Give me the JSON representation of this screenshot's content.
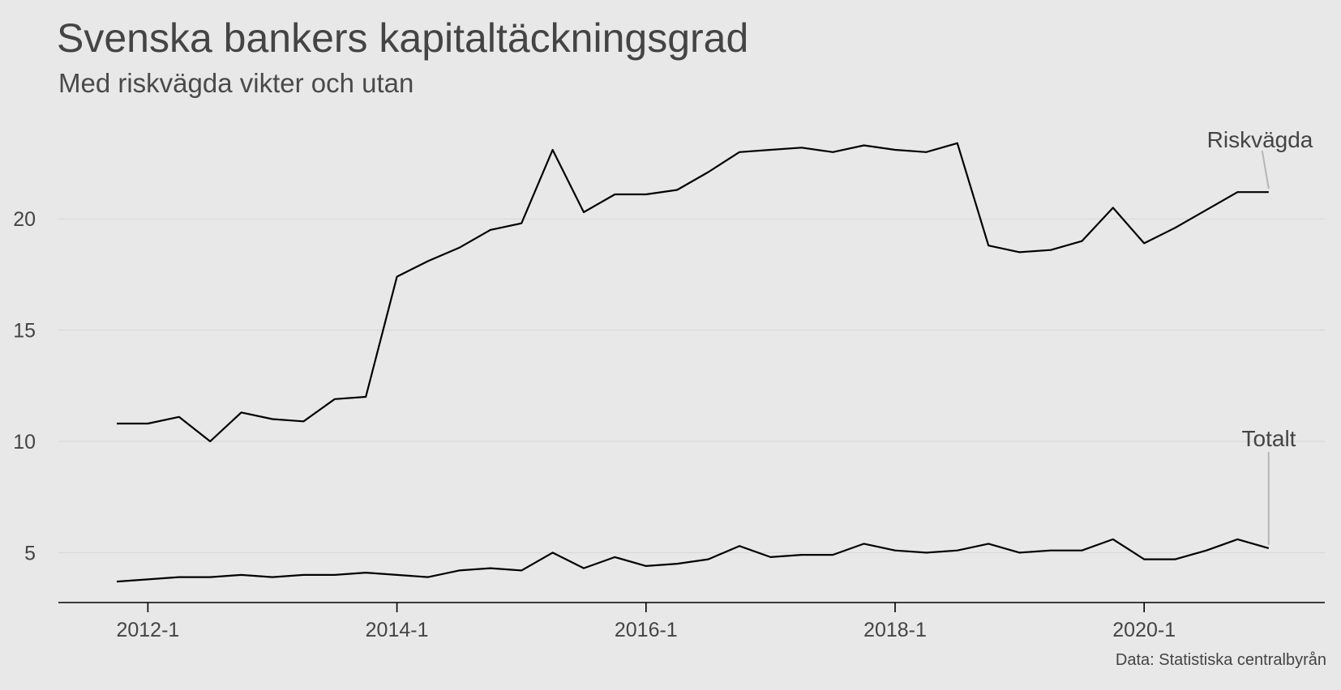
{
  "title": "Svenska bankers kapitaltäckningsgrad",
  "subtitle": "Med riskvägda vikter och utan",
  "caption": "Data: Statistiska centralbyrån",
  "colors": {
    "background": "#e8e8e8",
    "line": "#000000",
    "grid": "#d6d6d6",
    "label_text": "#444444",
    "leader": "#b5b5b5"
  },
  "chart_data": {
    "type": "line",
    "x_start": "2011-4",
    "x_frequency": "quarterly",
    "x": [
      "2011-4",
      "2012-1",
      "2012-2",
      "2012-3",
      "2012-4",
      "2013-1",
      "2013-2",
      "2013-3",
      "2013-4",
      "2014-1",
      "2014-2",
      "2014-3",
      "2014-4",
      "2015-1",
      "2015-2",
      "2015-3",
      "2015-4",
      "2016-1",
      "2016-2",
      "2016-3",
      "2016-4",
      "2017-1",
      "2017-2",
      "2017-3",
      "2017-4",
      "2018-1",
      "2018-2",
      "2018-3",
      "2018-4",
      "2019-1",
      "2019-2",
      "2019-3",
      "2019-4",
      "2020-1",
      "2020-2",
      "2020-3",
      "2020-4",
      "2021-1"
    ],
    "xticks": [
      "2012-1",
      "2014-1",
      "2016-1",
      "2018-1",
      "2020-1"
    ],
    "yticks": [
      5,
      10,
      15,
      20
    ],
    "ylim": [
      2.8,
      25.5
    ],
    "grid": "horizontal",
    "legend": "direct labels at line ends",
    "series": [
      {
        "name": "Riskvägda",
        "values": [
          10.8,
          10.8,
          11.1,
          10.0,
          11.3,
          11.0,
          10.9,
          11.9,
          12.0,
          17.4,
          18.1,
          18.7,
          19.5,
          19.8,
          23.1,
          20.3,
          21.1,
          21.1,
          21.3,
          22.1,
          23.0,
          23.1,
          23.2,
          23.0,
          23.3,
          23.1,
          23.0,
          23.4,
          18.8,
          18.5,
          18.6,
          19.0,
          20.5,
          18.9,
          19.6,
          20.4,
          21.2,
          21.2
        ]
      },
      {
        "name": "Totalt",
        "values": [
          3.7,
          3.8,
          3.9,
          3.9,
          4.0,
          3.9,
          4.0,
          4.0,
          4.1,
          4.0,
          3.9,
          4.2,
          4.3,
          4.2,
          5.0,
          4.3,
          4.8,
          4.4,
          4.5,
          4.7,
          5.3,
          4.8,
          4.9,
          4.9,
          5.4,
          5.1,
          5.0,
          5.1,
          5.4,
          5.0,
          5.1,
          5.1,
          5.6,
          4.7,
          4.7,
          5.1,
          5.6,
          5.2
        ]
      }
    ]
  }
}
